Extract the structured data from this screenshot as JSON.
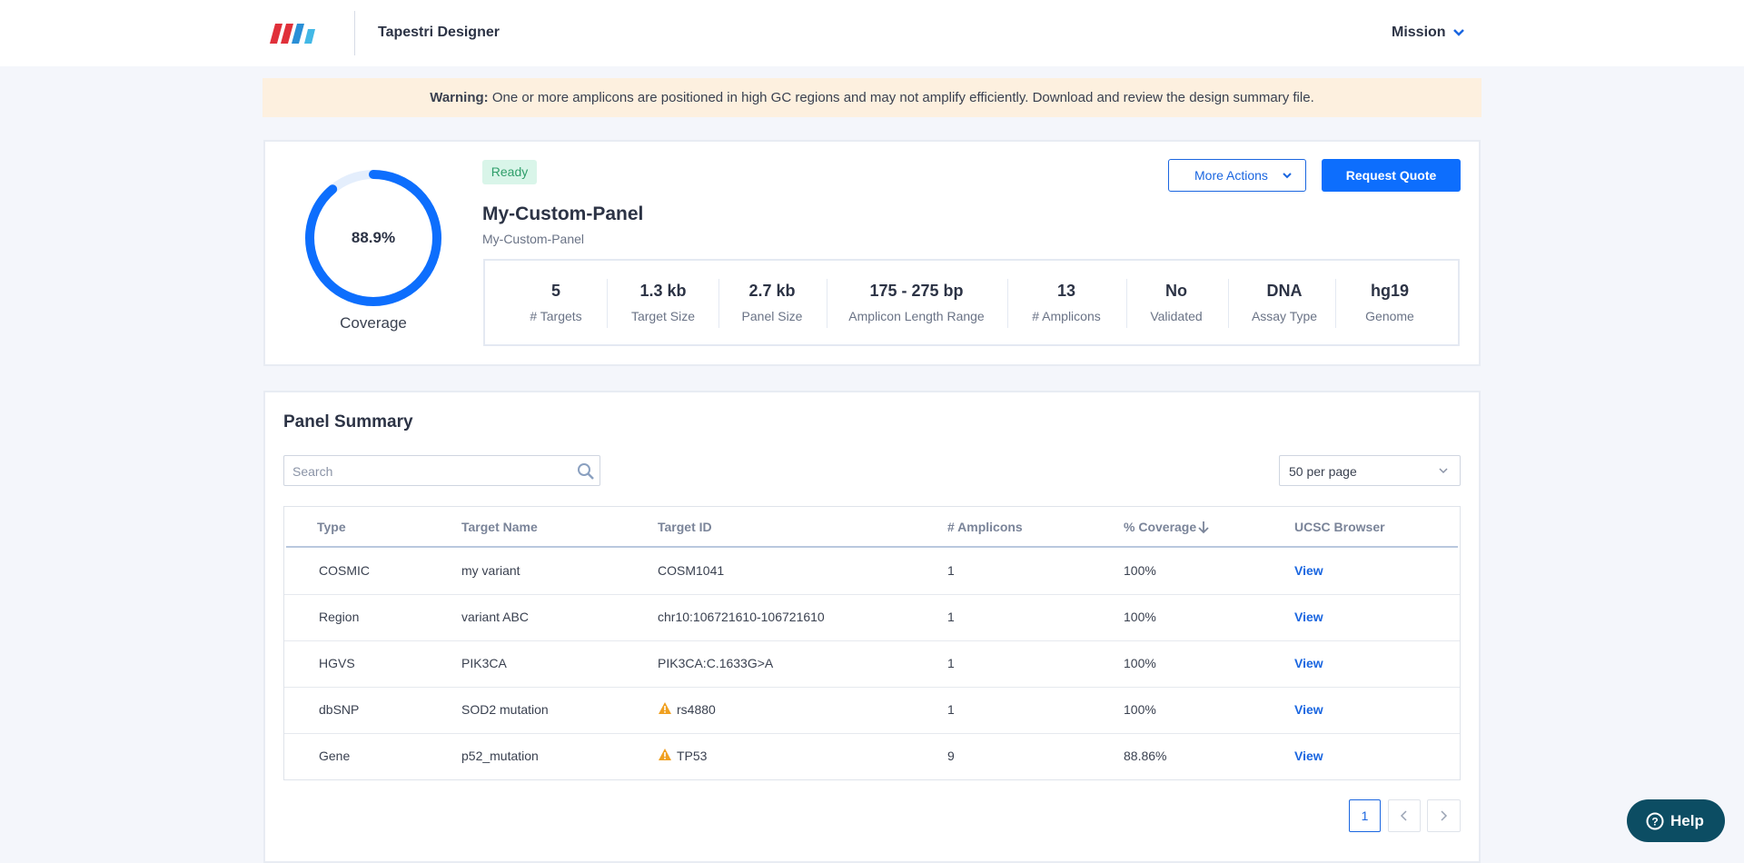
{
  "header": {
    "app_name": "Tapestri Designer",
    "user_menu": "Mission"
  },
  "warning": {
    "label": "Warning:",
    "text": "One or more amplicons are positioned in high GC regions and may not amplify efficiently. Download and review the design summary file."
  },
  "panel": {
    "coverage": {
      "value": 88.9,
      "label": "88.9%",
      "caption": "Coverage"
    },
    "status": "Ready",
    "title": "My-Custom-Panel",
    "subtitle": "My-Custom-Panel",
    "more_actions": "More Actions",
    "request_quote": "Request Quote",
    "stats": [
      {
        "value": "5",
        "label": "# Targets"
      },
      {
        "value": "1.3 kb",
        "label": "Target Size"
      },
      {
        "value": "2.7 kb",
        "label": "Panel Size"
      },
      {
        "value": "175 - 275 bp",
        "label": "Amplicon Length Range"
      },
      {
        "value": "13",
        "label": "# Amplicons"
      },
      {
        "value": "No",
        "label": "Validated"
      },
      {
        "value": "DNA",
        "label": "Assay Type"
      },
      {
        "value": "hg19",
        "label": "Genome"
      }
    ]
  },
  "summary": {
    "title": "Panel Summary",
    "search_placeholder": "Search",
    "per_page": "50 per page",
    "table": {
      "columns": [
        "Type",
        "Target Name",
        "Target ID",
        "# Amplicons",
        "% Coverage",
        "UCSC Browser"
      ],
      "rows": [
        {
          "type": "COSMIC",
          "target_name": "my variant",
          "target_id": "COSM1041",
          "amplicons": "1",
          "coverage": "100%",
          "browser": "View",
          "warning": false
        },
        {
          "type": "Region",
          "target_name": "variant ABC",
          "target_id": "chr10:106721610-106721610",
          "amplicons": "1",
          "coverage": "100%",
          "browser": "View",
          "warning": false
        },
        {
          "type": "HGVS",
          "target_name": "PIK3CA",
          "target_id": "PIK3CA:C.1633G>A",
          "amplicons": "1",
          "coverage": "100%",
          "browser": "View",
          "warning": false
        },
        {
          "type": "dbSNP",
          "target_name": "SOD2 mutation",
          "target_id": "rs4880",
          "amplicons": "1",
          "coverage": "100%",
          "browser": "View",
          "warning": true
        },
        {
          "type": "Gene",
          "target_name": "p52_mutation",
          "target_id": "TP53",
          "amplicons": "9",
          "coverage": "88.86%",
          "browser": "View",
          "warning": true
        }
      ]
    },
    "page": "1"
  },
  "help": "Help"
}
